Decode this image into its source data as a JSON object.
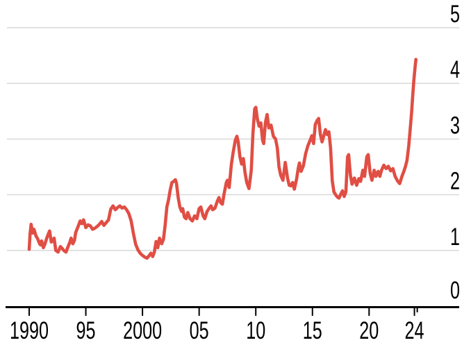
{
  "page": {
    "background": "#ffffff"
  },
  "colors": {
    "line": "#e04e44",
    "grid": "#d8d8d8",
    "axis": "#000000",
    "text": "#000000"
  },
  "chart_data": {
    "type": "line",
    "grid": true,
    "legend": "none",
    "y_labels_position": "right",
    "xlim": [
      1990,
      2024.25
    ],
    "ylim": [
      0,
      5
    ],
    "x_ticks": [
      {
        "year": 1990,
        "label": "1990"
      },
      {
        "year": 1995,
        "label": "95"
      },
      {
        "year": 2000,
        "label": "2000"
      },
      {
        "year": 2005,
        "label": "05"
      },
      {
        "year": 2010,
        "label": "10"
      },
      {
        "year": 2015,
        "label": "15"
      },
      {
        "year": 2020,
        "label": "20"
      },
      {
        "year": 2024,
        "label": "24"
      }
    ],
    "x_end_tick_year": 2024.25,
    "y_ticks": [
      {
        "value": 0,
        "label": "0"
      },
      {
        "value": 1,
        "label": "1"
      },
      {
        "value": 2,
        "label": "2"
      },
      {
        "value": 3,
        "label": "3"
      },
      {
        "value": 4,
        "label": "4"
      },
      {
        "value": 5,
        "label": "5"
      }
    ],
    "series": [
      {
        "name": "price-line",
        "color": "#e04e44",
        "points": [
          [
            1990.0,
            1.02
          ],
          [
            1990.08,
            1.3
          ],
          [
            1990.17,
            1.47
          ],
          [
            1990.3,
            1.31
          ],
          [
            1990.42,
            1.38
          ],
          [
            1990.6,
            1.26
          ],
          [
            1990.75,
            1.21
          ],
          [
            1990.92,
            1.12
          ],
          [
            1991.0,
            1.1
          ],
          [
            1991.1,
            1.17
          ],
          [
            1991.25,
            1.05
          ],
          [
            1991.4,
            1.12
          ],
          [
            1991.55,
            1.22
          ],
          [
            1991.7,
            1.3
          ],
          [
            1991.8,
            1.35
          ],
          [
            1991.95,
            1.15
          ],
          [
            1992.1,
            1.18
          ],
          [
            1992.2,
            1.22
          ],
          [
            1992.35,
            1.0
          ],
          [
            1992.55,
            0.97
          ],
          [
            1992.75,
            1.07
          ],
          [
            1992.9,
            1.04
          ],
          [
            1993.05,
            1.0
          ],
          [
            1993.25,
            0.97
          ],
          [
            1993.45,
            1.08
          ],
          [
            1993.6,
            1.15
          ],
          [
            1993.7,
            1.22
          ],
          [
            1993.85,
            1.12
          ],
          [
            1994.0,
            1.18
          ],
          [
            1994.1,
            1.32
          ],
          [
            1994.3,
            1.42
          ],
          [
            1994.5,
            1.53
          ],
          [
            1994.65,
            1.48
          ],
          [
            1994.8,
            1.55
          ],
          [
            1995.0,
            1.41
          ],
          [
            1995.2,
            1.46
          ],
          [
            1995.4,
            1.44
          ],
          [
            1995.6,
            1.38
          ],
          [
            1995.8,
            1.4
          ],
          [
            1996.0,
            1.43
          ],
          [
            1996.2,
            1.47
          ],
          [
            1996.4,
            1.52
          ],
          [
            1996.6,
            1.45
          ],
          [
            1996.8,
            1.5
          ],
          [
            1997.0,
            1.55
          ],
          [
            1997.2,
            1.74
          ],
          [
            1997.4,
            1.8
          ],
          [
            1997.6,
            1.73
          ],
          [
            1997.8,
            1.77
          ],
          [
            1998.0,
            1.8
          ],
          [
            1998.2,
            1.76
          ],
          [
            1998.4,
            1.78
          ],
          [
            1998.6,
            1.73
          ],
          [
            1998.8,
            1.66
          ],
          [
            1999.0,
            1.53
          ],
          [
            1999.2,
            1.3
          ],
          [
            1999.4,
            1.11
          ],
          [
            1999.6,
            1.01
          ],
          [
            1999.8,
            0.95
          ],
          [
            2000.0,
            0.91
          ],
          [
            2000.2,
            0.88
          ],
          [
            2000.4,
            0.86
          ],
          [
            2000.6,
            0.91
          ],
          [
            2000.75,
            0.95
          ],
          [
            2000.9,
            0.89
          ],
          [
            2001.05,
            0.97
          ],
          [
            2001.2,
            1.16
          ],
          [
            2001.35,
            1.05
          ],
          [
            2001.5,
            1.22
          ],
          [
            2001.7,
            1.12
          ],
          [
            2001.85,
            1.2
          ],
          [
            2002.0,
            1.45
          ],
          [
            2002.15,
            1.78
          ],
          [
            2002.3,
            1.91
          ],
          [
            2002.45,
            2.09
          ],
          [
            2002.6,
            2.22
          ],
          [
            2002.75,
            2.24
          ],
          [
            2002.9,
            2.27
          ],
          [
            2003.0,
            2.21
          ],
          [
            2003.15,
            1.95
          ],
          [
            2003.3,
            1.78
          ],
          [
            2003.45,
            1.7
          ],
          [
            2003.55,
            1.75
          ],
          [
            2003.7,
            1.6
          ],
          [
            2003.85,
            1.57
          ],
          [
            2004.0,
            1.68
          ],
          [
            2004.2,
            1.57
          ],
          [
            2004.4,
            1.53
          ],
          [
            2004.6,
            1.62
          ],
          [
            2004.8,
            1.57
          ],
          [
            2005.0,
            1.75
          ],
          [
            2005.15,
            1.78
          ],
          [
            2005.35,
            1.62
          ],
          [
            2005.5,
            1.57
          ],
          [
            2005.7,
            1.7
          ],
          [
            2005.9,
            1.76
          ],
          [
            2006.05,
            1.8
          ],
          [
            2006.2,
            1.73
          ],
          [
            2006.4,
            1.76
          ],
          [
            2006.6,
            1.88
          ],
          [
            2006.75,
            1.95
          ],
          [
            2006.9,
            1.86
          ],
          [
            2007.05,
            1.83
          ],
          [
            2007.2,
            2.01
          ],
          [
            2007.4,
            2.22
          ],
          [
            2007.5,
            2.26
          ],
          [
            2007.65,
            2.13
          ],
          [
            2007.85,
            2.55
          ],
          [
            2008.0,
            2.76
          ],
          [
            2008.2,
            2.98
          ],
          [
            2008.33,
            3.05
          ],
          [
            2008.45,
            2.95
          ],
          [
            2008.6,
            2.68
          ],
          [
            2008.75,
            2.55
          ],
          [
            2008.9,
            2.65
          ],
          [
            2009.05,
            2.4
          ],
          [
            2009.2,
            2.22
          ],
          [
            2009.4,
            2.11
          ],
          [
            2009.6,
            2.44
          ],
          [
            2009.75,
            3.1
          ],
          [
            2009.9,
            3.54
          ],
          [
            2010.0,
            3.57
          ],
          [
            2010.15,
            3.35
          ],
          [
            2010.3,
            3.23
          ],
          [
            2010.45,
            3.29
          ],
          [
            2010.6,
            2.98
          ],
          [
            2010.7,
            2.92
          ],
          [
            2010.85,
            3.3
          ],
          [
            2011.0,
            3.44
          ],
          [
            2011.15,
            3.2
          ],
          [
            2011.35,
            3.25
          ],
          [
            2011.55,
            3.05
          ],
          [
            2011.75,
            3.0
          ],
          [
            2011.9,
            2.84
          ],
          [
            2012.05,
            2.5
          ],
          [
            2012.2,
            2.35
          ],
          [
            2012.4,
            2.26
          ],
          [
            2012.6,
            2.58
          ],
          [
            2012.8,
            2.3
          ],
          [
            2012.95,
            2.17
          ],
          [
            2013.1,
            2.16
          ],
          [
            2013.25,
            2.22
          ],
          [
            2013.4,
            2.1
          ],
          [
            2013.6,
            2.28
          ],
          [
            2013.75,
            2.48
          ],
          [
            2013.85,
            2.57
          ],
          [
            2014.0,
            2.42
          ],
          [
            2014.2,
            2.52
          ],
          [
            2014.4,
            2.74
          ],
          [
            2014.6,
            2.88
          ],
          [
            2014.8,
            2.98
          ],
          [
            2014.95,
            3.06
          ],
          [
            2015.1,
            2.92
          ],
          [
            2015.25,
            3.26
          ],
          [
            2015.4,
            3.33
          ],
          [
            2015.55,
            3.37
          ],
          [
            2015.7,
            3.08
          ],
          [
            2015.85,
            2.95
          ],
          [
            2016.0,
            3.06
          ],
          [
            2016.15,
            3.17
          ],
          [
            2016.3,
            3.08
          ],
          [
            2016.45,
            3.13
          ],
          [
            2016.6,
            2.85
          ],
          [
            2016.75,
            2.25
          ],
          [
            2016.9,
            2.05
          ],
          [
            2017.05,
            2.0
          ],
          [
            2017.2,
            1.96
          ],
          [
            2017.35,
            1.94
          ],
          [
            2017.5,
            2.01
          ],
          [
            2017.65,
            2.07
          ],
          [
            2017.8,
            1.97
          ],
          [
            2017.95,
            2.05
          ],
          [
            2018.1,
            2.68
          ],
          [
            2018.2,
            2.72
          ],
          [
            2018.35,
            2.35
          ],
          [
            2018.5,
            2.19
          ],
          [
            2018.7,
            2.3
          ],
          [
            2018.9,
            2.17
          ],
          [
            2019.1,
            2.29
          ],
          [
            2019.25,
            2.24
          ],
          [
            2019.45,
            2.44
          ],
          [
            2019.6,
            2.33
          ],
          [
            2019.8,
            2.68
          ],
          [
            2019.92,
            2.72
          ],
          [
            2020.1,
            2.38
          ],
          [
            2020.25,
            2.26
          ],
          [
            2020.45,
            2.44
          ],
          [
            2020.6,
            2.33
          ],
          [
            2020.8,
            2.42
          ],
          [
            2020.95,
            2.33
          ],
          [
            2021.1,
            2.44
          ],
          [
            2021.3,
            2.53
          ],
          [
            2021.5,
            2.47
          ],
          [
            2021.7,
            2.51
          ],
          [
            2021.9,
            2.43
          ],
          [
            2022.1,
            2.47
          ],
          [
            2022.3,
            2.33
          ],
          [
            2022.5,
            2.25
          ],
          [
            2022.7,
            2.2
          ],
          [
            2022.9,
            2.33
          ],
          [
            2023.05,
            2.41
          ],
          [
            2023.2,
            2.5
          ],
          [
            2023.35,
            2.62
          ],
          [
            2023.5,
            2.88
          ],
          [
            2023.62,
            3.15
          ],
          [
            2023.75,
            3.48
          ],
          [
            2023.85,
            3.78
          ],
          [
            2023.95,
            4.05
          ],
          [
            2024.05,
            4.28
          ],
          [
            2024.13,
            4.43
          ]
        ]
      }
    ]
  }
}
